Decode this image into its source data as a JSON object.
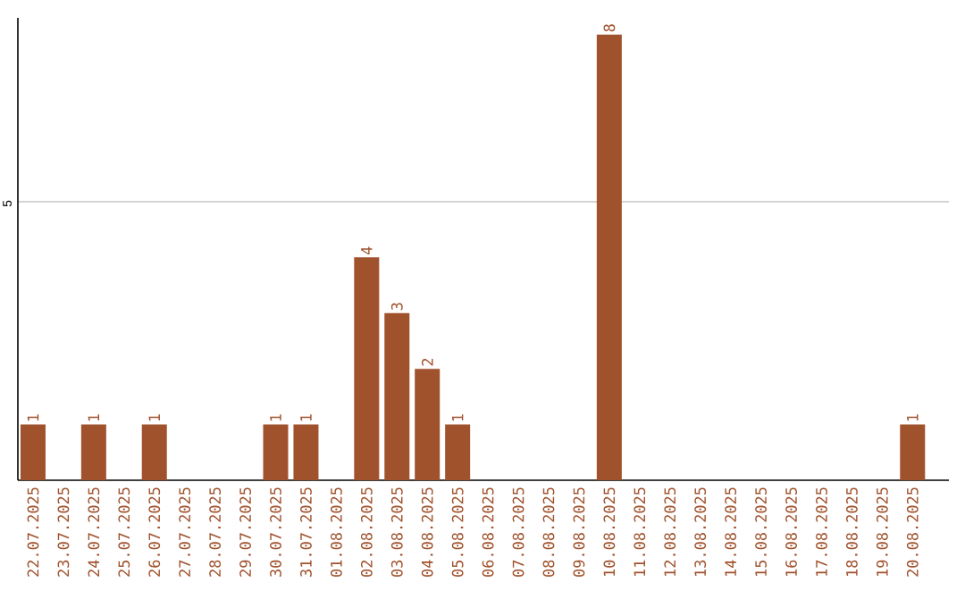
{
  "chart_data": {
    "type": "bar",
    "categories": [
      "22.07.2025",
      "23.07.2025",
      "24.07.2025",
      "25.07.2025",
      "26.07.2025",
      "27.07.2025",
      "28.07.2025",
      "29.07.2025",
      "30.07.2025",
      "31.07.2025",
      "01.08.2025",
      "02.08.2025",
      "03.08.2025",
      "04.08.2025",
      "05.08.2025",
      "06.08.2025",
      "07.08.2025",
      "08.08.2025",
      "09.08.2025",
      "10.08.2025",
      "11.08.2025",
      "12.08.2025",
      "13.08.2025",
      "14.08.2025",
      "15.08.2025",
      "16.08.2025",
      "17.08.2025",
      "18.08.2025",
      "19.08.2025",
      "20.08.2025"
    ],
    "values": [
      1,
      0,
      1,
      0,
      1,
      0,
      0,
      0,
      1,
      1,
      0,
      4,
      3,
      2,
      1,
      0,
      0,
      0,
      0,
      8,
      0,
      0,
      0,
      0,
      0,
      0,
      0,
      0,
      0,
      1
    ],
    "value_labels": [
      "1",
      null,
      "1",
      null,
      "1",
      null,
      null,
      null,
      "1",
      "1",
      null,
      "4",
      "3",
      "2",
      "1",
      null,
      null,
      null,
      null,
      "8",
      null,
      null,
      null,
      null,
      null,
      null,
      null,
      null,
      null,
      "1"
    ],
    "color": "#a0522d",
    "ylim": [
      0,
      8.3
    ],
    "yticks": [
      5
    ],
    "grid": "y"
  }
}
